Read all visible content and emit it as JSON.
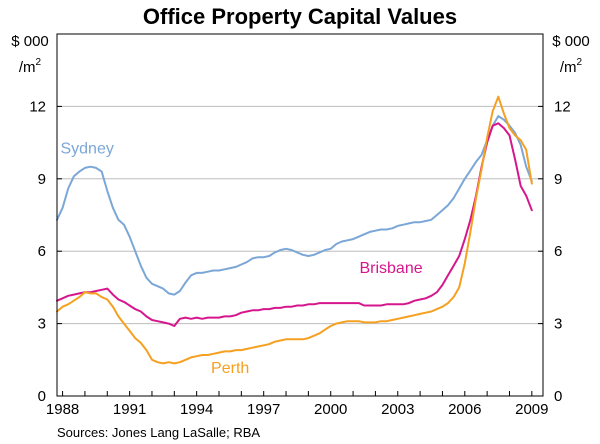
{
  "chart_data": {
    "type": "line",
    "title": "Office Property Capital Values",
    "ylabel_left": "$ 000",
    "ylabel_left_line2": "/m",
    "ylabel_right": "$ 000",
    "ylabel_right_line2": "/m",
    "ylabel_superscript": "2",
    "source": "Sources: Jones Lang LaSalle; RBA",
    "xlim": [
      1987.75,
      2009.5
    ],
    "ylim": [
      0,
      15
    ],
    "x_ticks": [
      1988,
      1991,
      1994,
      1997,
      2000,
      2003,
      2006,
      2009
    ],
    "x_tick_labels": [
      "1988",
      "1991",
      "1994",
      "1997",
      "2000",
      "2003",
      "2006",
      "2009"
    ],
    "y_ticks": [
      0,
      3,
      6,
      9,
      12
    ],
    "y_tick_labels": [
      "0",
      "3",
      "6",
      "9",
      "12"
    ],
    "grid": true,
    "series": [
      {
        "name": "Sydney",
        "color": "#7ba7d7",
        "points": [
          [
            1987.75,
            7.3
          ],
          [
            1988.0,
            7.8
          ],
          [
            1988.25,
            8.6
          ],
          [
            1988.5,
            9.1
          ],
          [
            1988.75,
            9.3
          ],
          [
            1989.0,
            9.45
          ],
          [
            1989.25,
            9.5
          ],
          [
            1989.5,
            9.45
          ],
          [
            1989.75,
            9.3
          ],
          [
            1990.0,
            8.5
          ],
          [
            1990.25,
            7.8
          ],
          [
            1990.5,
            7.3
          ],
          [
            1990.75,
            7.1
          ],
          [
            1991.0,
            6.6
          ],
          [
            1991.25,
            6.0
          ],
          [
            1991.5,
            5.4
          ],
          [
            1991.75,
            4.9
          ],
          [
            1992.0,
            4.65
          ],
          [
            1992.25,
            4.55
          ],
          [
            1992.5,
            4.45
          ],
          [
            1992.75,
            4.25
          ],
          [
            1993.0,
            4.2
          ],
          [
            1993.25,
            4.35
          ],
          [
            1993.5,
            4.7
          ],
          [
            1993.75,
            5.0
          ],
          [
            1994.0,
            5.1
          ],
          [
            1994.25,
            5.1
          ],
          [
            1994.5,
            5.15
          ],
          [
            1994.75,
            5.2
          ],
          [
            1995.0,
            5.2
          ],
          [
            1995.25,
            5.25
          ],
          [
            1995.5,
            5.3
          ],
          [
            1995.75,
            5.35
          ],
          [
            1996.0,
            5.45
          ],
          [
            1996.25,
            5.55
          ],
          [
            1996.5,
            5.7
          ],
          [
            1996.75,
            5.75
          ],
          [
            1997.0,
            5.75
          ],
          [
            1997.25,
            5.8
          ],
          [
            1997.5,
            5.95
          ],
          [
            1997.75,
            6.05
          ],
          [
            1998.0,
            6.1
          ],
          [
            1998.25,
            6.05
          ],
          [
            1998.5,
            5.95
          ],
          [
            1998.75,
            5.85
          ],
          [
            1999.0,
            5.8
          ],
          [
            1999.25,
            5.85
          ],
          [
            1999.5,
            5.95
          ],
          [
            1999.75,
            6.05
          ],
          [
            2000.0,
            6.1
          ],
          [
            2000.25,
            6.3
          ],
          [
            2000.5,
            6.4
          ],
          [
            2000.75,
            6.45
          ],
          [
            2001.0,
            6.5
          ],
          [
            2001.25,
            6.6
          ],
          [
            2001.5,
            6.7
          ],
          [
            2001.75,
            6.8
          ],
          [
            2002.0,
            6.85
          ],
          [
            2002.25,
            6.9
          ],
          [
            2002.5,
            6.9
          ],
          [
            2002.75,
            6.95
          ],
          [
            2003.0,
            7.05
          ],
          [
            2003.25,
            7.1
          ],
          [
            2003.5,
            7.15
          ],
          [
            2003.75,
            7.2
          ],
          [
            2004.0,
            7.2
          ],
          [
            2004.25,
            7.25
          ],
          [
            2004.5,
            7.3
          ],
          [
            2004.75,
            7.5
          ],
          [
            2005.0,
            7.7
          ],
          [
            2005.25,
            7.9
          ],
          [
            2005.5,
            8.2
          ],
          [
            2005.75,
            8.6
          ],
          [
            2006.0,
            9.0
          ],
          [
            2006.25,
            9.35
          ],
          [
            2006.5,
            9.7
          ],
          [
            2006.75,
            10.0
          ],
          [
            2007.0,
            10.6
          ],
          [
            2007.25,
            11.2
          ],
          [
            2007.5,
            11.6
          ],
          [
            2007.75,
            11.45
          ],
          [
            2008.0,
            11.2
          ],
          [
            2008.25,
            10.9
          ],
          [
            2008.5,
            10.4
          ],
          [
            2008.75,
            9.5
          ],
          [
            2009.0,
            8.9
          ]
        ]
      },
      {
        "name": "Brisbane",
        "color": "#d6168d",
        "points": [
          [
            1987.75,
            3.95
          ],
          [
            1988.0,
            4.05
          ],
          [
            1988.25,
            4.15
          ],
          [
            1988.5,
            4.2
          ],
          [
            1988.75,
            4.25
          ],
          [
            1989.0,
            4.3
          ],
          [
            1989.25,
            4.3
          ],
          [
            1989.5,
            4.35
          ],
          [
            1989.75,
            4.4
          ],
          [
            1990.0,
            4.45
          ],
          [
            1990.25,
            4.2
          ],
          [
            1990.5,
            4.0
          ],
          [
            1990.75,
            3.9
          ],
          [
            1991.0,
            3.75
          ],
          [
            1991.25,
            3.6
          ],
          [
            1991.5,
            3.5
          ],
          [
            1991.75,
            3.3
          ],
          [
            1992.0,
            3.15
          ],
          [
            1992.25,
            3.1
          ],
          [
            1992.5,
            3.05
          ],
          [
            1992.75,
            3.0
          ],
          [
            1993.0,
            2.9
          ],
          [
            1993.25,
            3.2
          ],
          [
            1993.5,
            3.25
          ],
          [
            1993.75,
            3.2
          ],
          [
            1994.0,
            3.25
          ],
          [
            1994.25,
            3.2
          ],
          [
            1994.5,
            3.25
          ],
          [
            1994.75,
            3.25
          ],
          [
            1995.0,
            3.25
          ],
          [
            1995.25,
            3.3
          ],
          [
            1995.5,
            3.3
          ],
          [
            1995.75,
            3.35
          ],
          [
            1996.0,
            3.45
          ],
          [
            1996.25,
            3.5
          ],
          [
            1996.5,
            3.55
          ],
          [
            1996.75,
            3.55
          ],
          [
            1997.0,
            3.6
          ],
          [
            1997.25,
            3.6
          ],
          [
            1997.5,
            3.65
          ],
          [
            1997.75,
            3.65
          ],
          [
            1998.0,
            3.7
          ],
          [
            1998.25,
            3.7
          ],
          [
            1998.5,
            3.75
          ],
          [
            1998.75,
            3.75
          ],
          [
            1999.0,
            3.8
          ],
          [
            1999.25,
            3.8
          ],
          [
            1999.5,
            3.85
          ],
          [
            1999.75,
            3.85
          ],
          [
            2000.0,
            3.85
          ],
          [
            2000.25,
            3.85
          ],
          [
            2000.5,
            3.85
          ],
          [
            2000.75,
            3.85
          ],
          [
            2001.0,
            3.85
          ],
          [
            2001.25,
            3.85
          ],
          [
            2001.5,
            3.75
          ],
          [
            2001.75,
            3.75
          ],
          [
            2002.0,
            3.75
          ],
          [
            2002.25,
            3.75
          ],
          [
            2002.5,
            3.8
          ],
          [
            2002.75,
            3.8
          ],
          [
            2003.0,
            3.8
          ],
          [
            2003.25,
            3.8
          ],
          [
            2003.5,
            3.85
          ],
          [
            2003.75,
            3.95
          ],
          [
            2004.0,
            4.0
          ],
          [
            2004.25,
            4.05
          ],
          [
            2004.5,
            4.15
          ],
          [
            2004.75,
            4.3
          ],
          [
            2005.0,
            4.6
          ],
          [
            2005.25,
            5.0
          ],
          [
            2005.5,
            5.4
          ],
          [
            2005.75,
            5.8
          ],
          [
            2006.0,
            6.5
          ],
          [
            2006.25,
            7.3
          ],
          [
            2006.5,
            8.3
          ],
          [
            2006.75,
            9.5
          ],
          [
            2007.0,
            10.5
          ],
          [
            2007.25,
            11.2
          ],
          [
            2007.5,
            11.3
          ],
          [
            2007.75,
            11.1
          ],
          [
            2008.0,
            10.8
          ],
          [
            2008.25,
            9.8
          ],
          [
            2008.5,
            8.7
          ],
          [
            2008.75,
            8.3
          ],
          [
            2009.0,
            7.7
          ]
        ]
      },
      {
        "name": "Perth",
        "color": "#f5a020",
        "points": [
          [
            1987.75,
            3.5
          ],
          [
            1988.0,
            3.7
          ],
          [
            1988.25,
            3.8
          ],
          [
            1988.5,
            3.95
          ],
          [
            1988.75,
            4.1
          ],
          [
            1989.0,
            4.3
          ],
          [
            1989.25,
            4.25
          ],
          [
            1989.5,
            4.25
          ],
          [
            1989.75,
            4.1
          ],
          [
            1990.0,
            4.0
          ],
          [
            1990.25,
            3.7
          ],
          [
            1990.5,
            3.3
          ],
          [
            1990.75,
            3.0
          ],
          [
            1991.0,
            2.7
          ],
          [
            1991.25,
            2.4
          ],
          [
            1991.5,
            2.2
          ],
          [
            1991.75,
            1.9
          ],
          [
            1992.0,
            1.5
          ],
          [
            1992.25,
            1.4
          ],
          [
            1992.5,
            1.35
          ],
          [
            1992.75,
            1.4
          ],
          [
            1993.0,
            1.35
          ],
          [
            1993.25,
            1.4
          ],
          [
            1993.5,
            1.5
          ],
          [
            1993.75,
            1.6
          ],
          [
            1994.0,
            1.65
          ],
          [
            1994.25,
            1.7
          ],
          [
            1994.5,
            1.7
          ],
          [
            1994.75,
            1.75
          ],
          [
            1995.0,
            1.8
          ],
          [
            1995.25,
            1.85
          ],
          [
            1995.5,
            1.85
          ],
          [
            1995.75,
            1.9
          ],
          [
            1996.0,
            1.9
          ],
          [
            1996.25,
            1.95
          ],
          [
            1996.5,
            2.0
          ],
          [
            1996.75,
            2.05
          ],
          [
            1997.0,
            2.1
          ],
          [
            1997.25,
            2.15
          ],
          [
            1997.5,
            2.25
          ],
          [
            1997.75,
            2.3
          ],
          [
            1998.0,
            2.35
          ],
          [
            1998.25,
            2.35
          ],
          [
            1998.5,
            2.35
          ],
          [
            1998.75,
            2.35
          ],
          [
            1999.0,
            2.4
          ],
          [
            1999.25,
            2.5
          ],
          [
            1999.5,
            2.6
          ],
          [
            1999.75,
            2.75
          ],
          [
            2000.0,
            2.9
          ],
          [
            2000.25,
            3.0
          ],
          [
            2000.5,
            3.05
          ],
          [
            2000.75,
            3.1
          ],
          [
            2001.0,
            3.1
          ],
          [
            2001.25,
            3.1
          ],
          [
            2001.5,
            3.05
          ],
          [
            2001.75,
            3.05
          ],
          [
            2002.0,
            3.05
          ],
          [
            2002.25,
            3.1
          ],
          [
            2002.5,
            3.1
          ],
          [
            2002.75,
            3.15
          ],
          [
            2003.0,
            3.2
          ],
          [
            2003.25,
            3.25
          ],
          [
            2003.5,
            3.3
          ],
          [
            2003.75,
            3.35
          ],
          [
            2004.0,
            3.4
          ],
          [
            2004.25,
            3.45
          ],
          [
            2004.5,
            3.5
          ],
          [
            2004.75,
            3.6
          ],
          [
            2005.0,
            3.7
          ],
          [
            2005.25,
            3.85
          ],
          [
            2005.5,
            4.1
          ],
          [
            2005.75,
            4.5
          ],
          [
            2006.0,
            5.5
          ],
          [
            2006.25,
            6.8
          ],
          [
            2006.5,
            8.2
          ],
          [
            2006.75,
            9.4
          ],
          [
            2007.0,
            10.7
          ],
          [
            2007.25,
            11.8
          ],
          [
            2007.5,
            12.4
          ],
          [
            2007.75,
            11.7
          ],
          [
            2008.0,
            11.1
          ],
          [
            2008.25,
            10.8
          ],
          [
            2008.5,
            10.6
          ],
          [
            2008.75,
            10.2
          ],
          [
            2009.0,
            8.8
          ]
        ]
      }
    ],
    "series_label_positions": {
      "Sydney": "upper-left",
      "Brisbane": "center-right",
      "Perth": "lower-center"
    }
  }
}
